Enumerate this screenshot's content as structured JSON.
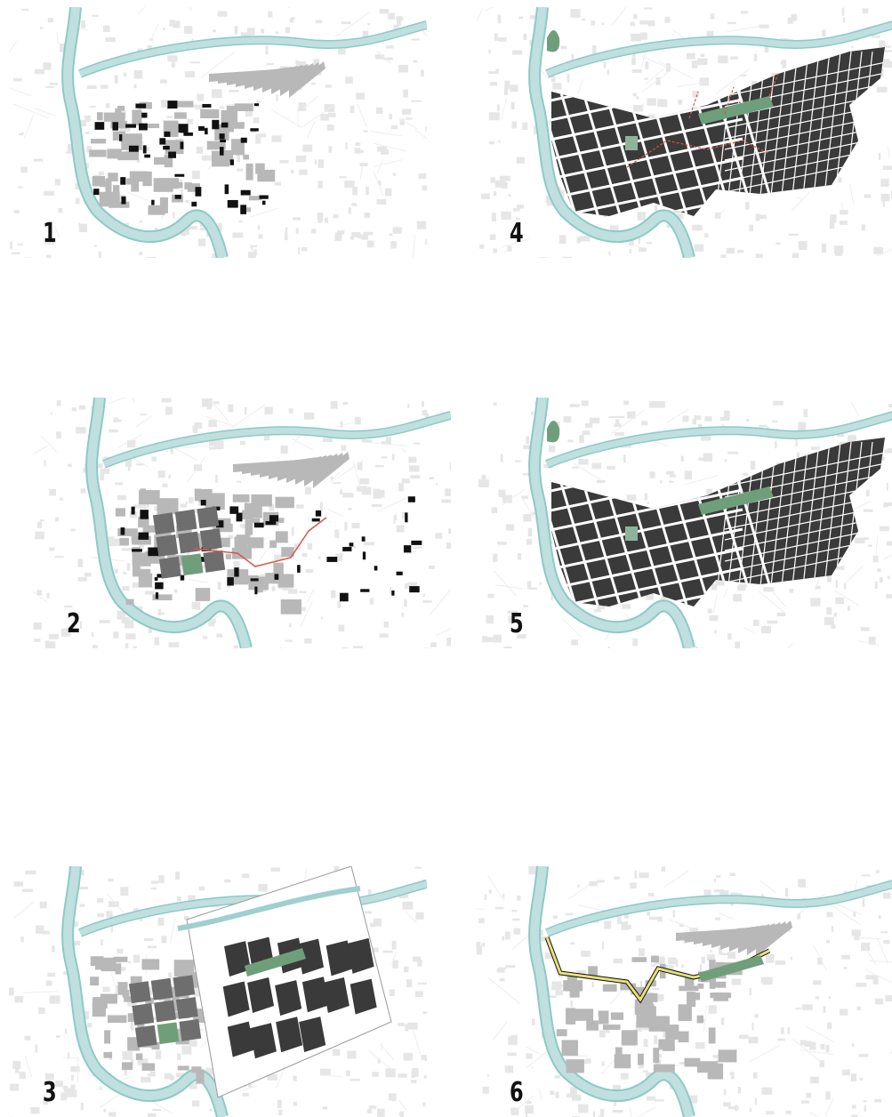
{
  "panels": [
    {
      "id": "p1",
      "label": "1",
      "style": "existing"
    },
    {
      "id": "p2",
      "label": "2",
      "style": "phase2"
    },
    {
      "id": "p3",
      "label": "3",
      "style": "phase3"
    },
    {
      "id": "p4",
      "label": "4",
      "style": "phase4"
    },
    {
      "id": "p5",
      "label": "5",
      "style": "phase5"
    },
    {
      "id": "p6",
      "label": "6",
      "style": "phase6"
    }
  ],
  "colors": {
    "river": "#bfe0df",
    "river_edge": "#8ec9c6",
    "background_blocks": "#e6e6e6",
    "existing_building": "#111111",
    "planned_block": "#3a3a3a",
    "mid_block": "#6e6e6e",
    "light_block": "#b8b8b8",
    "park": "#6f9f7a",
    "route_red": "#d9534f",
    "route_yellow": "#e8e07a",
    "canal": "#9fcfcf"
  }
}
